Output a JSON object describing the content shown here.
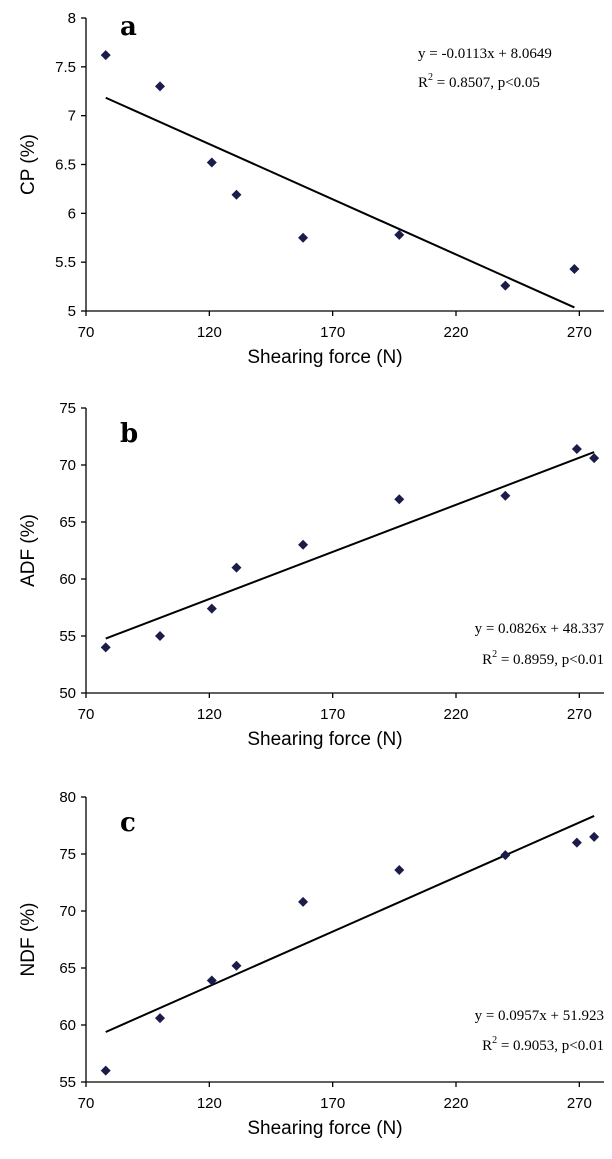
{
  "chart_data": [
    {
      "type": "scatter",
      "panel_label": "a",
      "xlabel": "Shearing force (N)",
      "ylabel": "CP (%)",
      "xlim": [
        70,
        280
      ],
      "ylim": [
        5,
        8
      ],
      "xticks": [
        "70",
        "120",
        "170",
        "220",
        "270"
      ],
      "yticks": [
        "5",
        "5.5",
        "6",
        "6.5",
        "7",
        "7.5",
        "8"
      ],
      "points": [
        {
          "x": 78,
          "y": 7.62
        },
        {
          "x": 100,
          "y": 7.3
        },
        {
          "x": 121,
          "y": 6.52
        },
        {
          "x": 131,
          "y": 6.19
        },
        {
          "x": 158,
          "y": 5.75
        },
        {
          "x": 197,
          "y": 5.78
        },
        {
          "x": 240,
          "y": 5.26
        },
        {
          "x": 268,
          "y": 5.43
        }
      ],
      "trendline": {
        "slope": -0.0113,
        "intercept": 8.0649,
        "x_range": [
          78,
          268
        ]
      },
      "equation": "y = -0.0113x + 8.0649",
      "r2_prefix": "R",
      "r2_rest": " = 0.8507,  p<0.05"
    },
    {
      "type": "scatter",
      "panel_label": "b",
      "xlabel": "Shearing force (N)",
      "ylabel": "ADF (%)",
      "xlim": [
        70,
        280
      ],
      "ylim": [
        50,
        75
      ],
      "xticks": [
        "70",
        "120",
        "170",
        "220",
        "270"
      ],
      "yticks": [
        "50",
        "55",
        "60",
        "65",
        "70",
        "75"
      ],
      "points": [
        {
          "x": 78,
          "y": 54.0
        },
        {
          "x": 100,
          "y": 55.0
        },
        {
          "x": 121,
          "y": 57.4
        },
        {
          "x": 131,
          "y": 61.0
        },
        {
          "x": 158,
          "y": 63.0
        },
        {
          "x": 197,
          "y": 67.0
        },
        {
          "x": 240,
          "y": 67.3
        },
        {
          "x": 269,
          "y": 71.4
        },
        {
          "x": 276,
          "y": 70.6
        }
      ],
      "trendline": {
        "slope": 0.0826,
        "intercept": 48.337,
        "x_range": [
          78,
          276
        ]
      },
      "equation": "y = 0.0826x + 48.337",
      "r2_prefix": "R",
      "r2_rest": " = 0.8959,  p<0.01"
    },
    {
      "type": "scatter",
      "panel_label": "c",
      "xlabel": "Shearing force (N)",
      "ylabel": "NDF (%)",
      "xlim": [
        70,
        280
      ],
      "ylim": [
        55,
        80
      ],
      "xticks": [
        "70",
        "120",
        "170",
        "220",
        "270"
      ],
      "yticks": [
        "55",
        "60",
        "65",
        "70",
        "75",
        "80"
      ],
      "points": [
        {
          "x": 78,
          "y": 56.0
        },
        {
          "x": 100,
          "y": 60.6
        },
        {
          "x": 121,
          "y": 63.9
        },
        {
          "x": 131,
          "y": 65.2
        },
        {
          "x": 158,
          "y": 70.8
        },
        {
          "x": 197,
          "y": 73.6
        },
        {
          "x": 240,
          "y": 74.9
        },
        {
          "x": 269,
          "y": 76.0
        },
        {
          "x": 276,
          "y": 76.5
        }
      ],
      "trendline": {
        "slope": 0.0957,
        "intercept": 51.923,
        "x_range": [
          78,
          276
        ]
      },
      "equation": "y = 0.0957x + 51.923",
      "r2_prefix": "R",
      "r2_rest": " = 0.9053,  p<0.01"
    }
  ]
}
